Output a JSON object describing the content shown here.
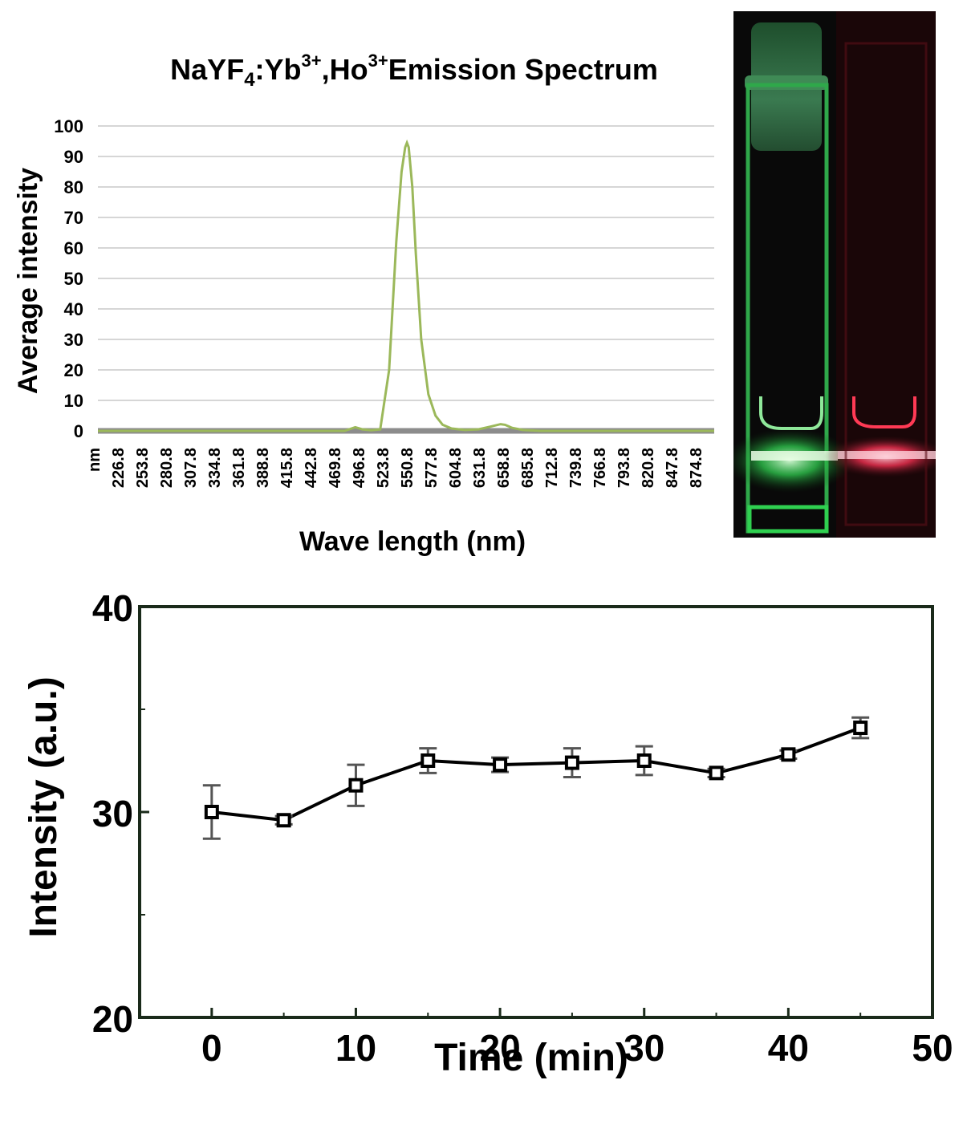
{
  "chart_data": [
    {
      "type": "line",
      "title": {
        "base": "NaYF",
        "sub": "4",
        "mid1": ":Yb",
        "sup1": "3+",
        "mid2": ",Ho",
        "sup2": "3+",
        "tail": "Emission Spectrum"
      },
      "xlabel": "Wave length (nm)",
      "ylabel": "Average intensity",
      "ylim": [
        0,
        100
      ],
      "yticks": [
        0,
        10,
        20,
        30,
        40,
        50,
        60,
        70,
        80,
        90,
        100
      ],
      "xticklabels": [
        "nm",
        "226.8",
        "253.8",
        "280.8",
        "307.8",
        "334.8",
        "361.8",
        "388.8",
        "415.8",
        "442.8",
        "469.8",
        "496.8",
        "523.8",
        "550.8",
        "577.8",
        "604.8",
        "631.8",
        "658.8",
        "685.8",
        "712.8",
        "739.8",
        "766.8",
        "793.8",
        "820.8",
        "847.8",
        "874.8"
      ],
      "grid": true,
      "series": [
        {
          "color": "#9bb85a",
          "x": [
            200,
            460,
            480,
            492,
            500,
            510,
            520,
            530,
            538,
            544,
            548,
            550,
            552,
            556,
            560,
            566,
            574,
            582,
            590,
            600,
            615,
            630,
            645,
            655,
            660,
            668,
            680,
            700,
            900
          ],
          "y": [
            0,
            0,
            0,
            1.2,
            0.5,
            0.2,
            0.5,
            20,
            62,
            85,
            93,
            94.5,
            93,
            80,
            58,
            30,
            12,
            5,
            2,
            0.8,
            0.3,
            0.5,
            1.5,
            2.2,
            2,
            1,
            0.3,
            0,
            0
          ]
        }
      ]
    },
    {
      "type": "scatter",
      "xlabel": "Time (min)",
      "ylabel": "Intensity (a.u.)",
      "xlim": [
        -5,
        50
      ],
      "ylim": [
        20,
        40
      ],
      "xticks": [
        0,
        10,
        20,
        30,
        40,
        50
      ],
      "yticks": [
        20,
        30,
        40
      ],
      "series": [
        {
          "color": "#000000",
          "x": [
            0,
            5,
            10,
            15,
            20,
            25,
            30,
            35,
            40,
            45
          ],
          "y": [
            30.0,
            29.6,
            31.3,
            32.5,
            32.3,
            32.4,
            32.5,
            31.9,
            32.8,
            34.1
          ],
          "error": [
            1.3,
            0.2,
            1.0,
            0.6,
            0.35,
            0.7,
            0.7,
            0.2,
            0.2,
            0.5
          ]
        }
      ]
    }
  ]
}
